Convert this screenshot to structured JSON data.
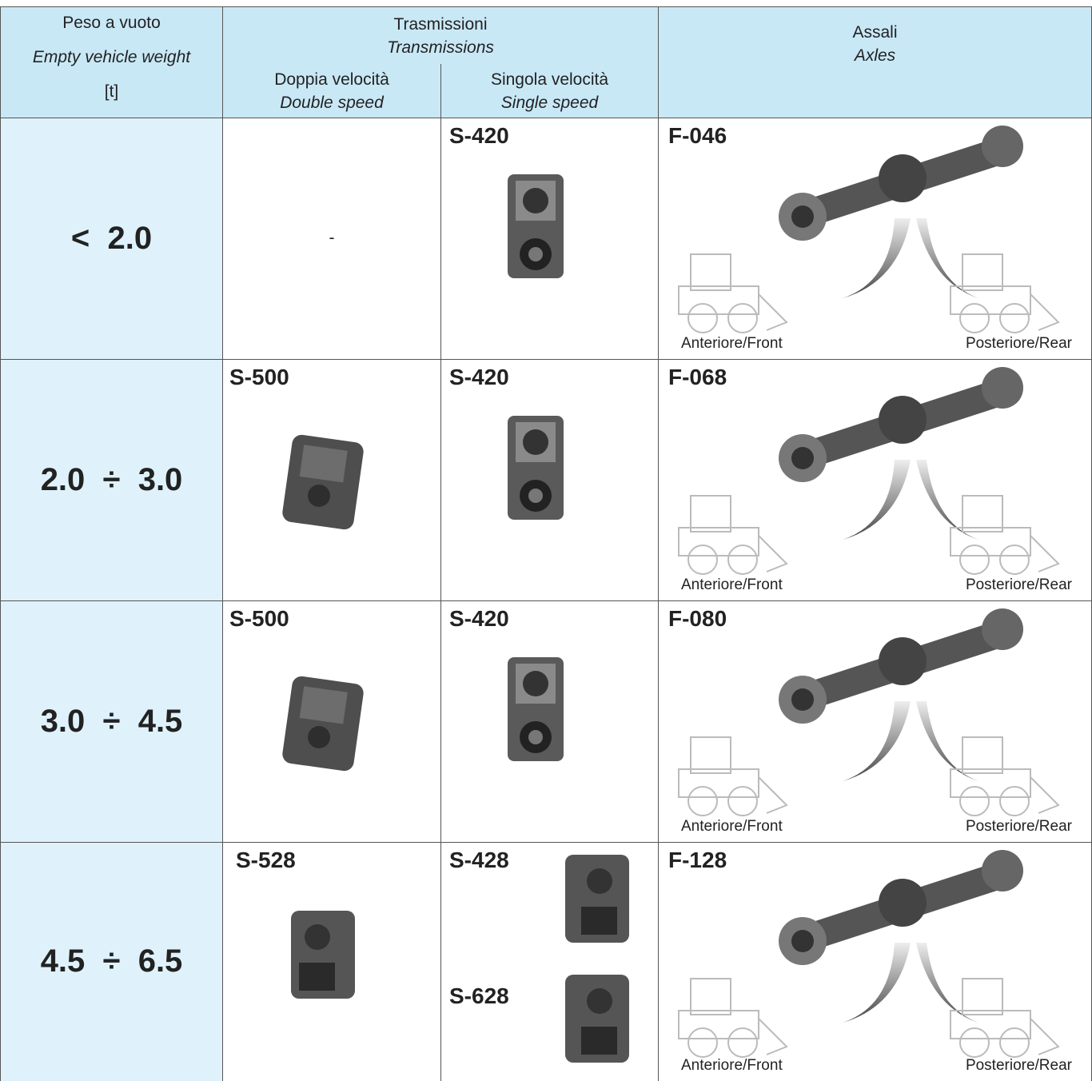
{
  "header": {
    "weight": {
      "it": "Peso a vuoto",
      "en": "Empty vehicle weight",
      "unit": "[t]"
    },
    "transmissions": {
      "it": "Trasmissioni",
      "en": "Transmissions",
      "double": {
        "it": "Doppia velocità",
        "en": "Double speed"
      },
      "single": {
        "it": "Singola velocità",
        "en": "Single speed"
      }
    },
    "axles": {
      "it": "Assali",
      "en": "Axles"
    }
  },
  "rows": [
    {
      "weight": "<  2.0",
      "double": [
        "-"
      ],
      "single": [
        "S-420"
      ],
      "axle": {
        "model": "F-046",
        "front": "Anteriore/Front",
        "rear": "Posteriore/Rear"
      }
    },
    {
      "weight": "2.0  ÷  3.0",
      "double": [
        "S-500"
      ],
      "single": [
        "S-420"
      ],
      "axle": {
        "model": "F-068",
        "front": "Anteriore/Front",
        "rear": "Posteriore/Rear"
      }
    },
    {
      "weight": "3.0  ÷  4.5",
      "double": [
        "S-500"
      ],
      "single": [
        "S-420"
      ],
      "axle": {
        "model": "F-080",
        "front": "Anteriore/Front",
        "rear": "Posteriore/Rear"
      }
    },
    {
      "weight": "4.5  ÷  6.5",
      "double": [
        "S-528"
      ],
      "single": [
        "S-428",
        "S-628"
      ],
      "axle": {
        "model": "F-128",
        "front": "Anteriore/Front",
        "rear": "Posteriore/Rear"
      }
    }
  ]
}
